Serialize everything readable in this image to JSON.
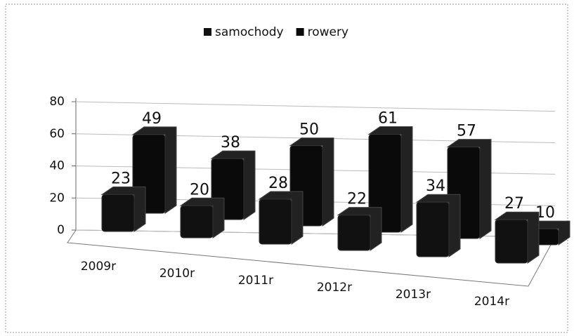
{
  "chart_data": {
    "type": "bar3d",
    "categories": [
      "2009r",
      "2010r",
      "2011r",
      "2012r",
      "2013r",
      "2014r"
    ],
    "series": [
      {
        "name": "samochody",
        "color": "#111111",
        "values": [
          23,
          20,
          28,
          22,
          34,
          27
        ]
      },
      {
        "name": "rowery",
        "color": "#0a0a0a",
        "values": [
          49,
          38,
          50,
          61,
          57,
          10
        ]
      }
    ],
    "ylim": [
      0,
      80
    ],
    "yticks": [
      0,
      20,
      40,
      60,
      80
    ],
    "grid": true,
    "legend": "top"
  }
}
